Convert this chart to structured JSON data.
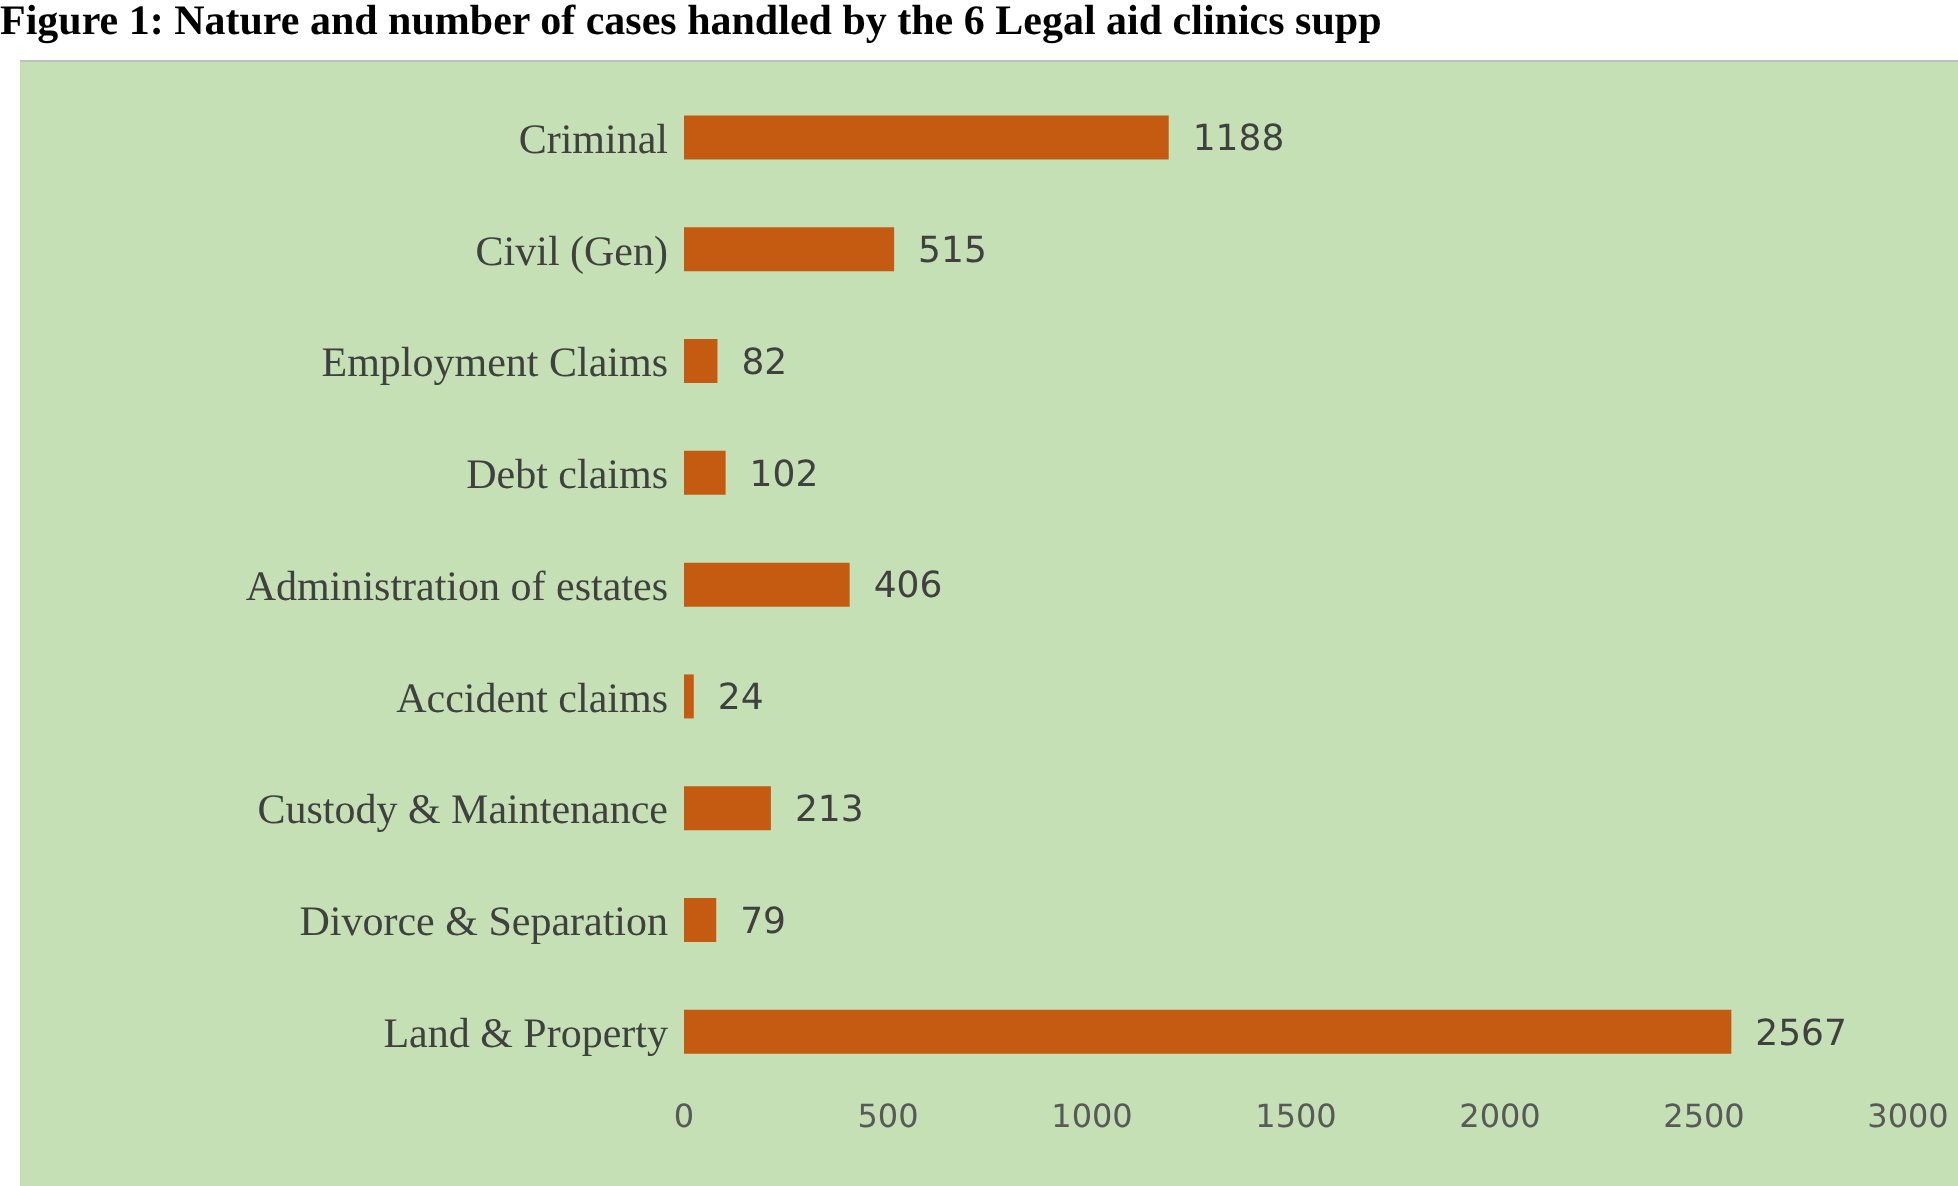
{
  "chart_data": {
    "type": "bar",
    "orientation": "horizontal",
    "title": "Figure 1: Nature and number of cases handled by the 6 Legal aid clinics supp",
    "categories": [
      "Criminal",
      "Civil (Gen)",
      "Employment Claims",
      "Debt claims",
      "Administration of estates",
      "Accident claims",
      "Custody & Maintenance",
      "Divorce & Separation",
      "Land & Property"
    ],
    "values": [
      1188,
      515,
      82,
      102,
      406,
      24,
      213,
      79,
      2567
    ],
    "color": "#c55a11",
    "data_labels": true,
    "xlim": [
      0,
      3000
    ],
    "xticks": [
      0,
      500,
      1000,
      1500,
      2000,
      2500,
      3000
    ]
  }
}
